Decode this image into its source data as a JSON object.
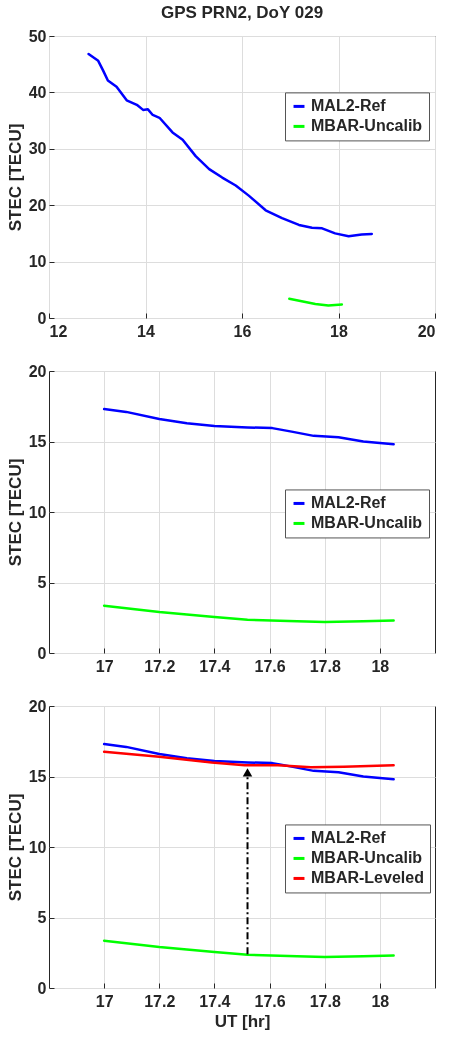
{
  "chart_data": [
    {
      "type": "line",
      "title": "GPS PRN2,  DoY 029",
      "ylabel": "STEC [TECU]",
      "xlim": [
        12,
        20
      ],
      "xticks": [
        12,
        14,
        16,
        18,
        20
      ],
      "ylim": [
        0,
        50
      ],
      "yticks": [
        0,
        10,
        20,
        30,
        40,
        50
      ],
      "grid": true,
      "legend": "top right",
      "series": [
        {
          "name": "MAL2-Ref",
          "color": "#0000ff",
          "x": [
            12.82,
            13.02,
            13.12,
            13.22,
            13.4,
            13.61,
            13.82,
            13.95,
            14.05,
            14.15,
            14.29,
            14.56,
            14.77,
            15.04,
            15.32,
            15.59,
            15.87,
            16.14,
            16.49,
            16.83,
            17.18,
            17.45,
            17.66,
            17.93,
            18.21,
            18.48,
            18.69
          ],
          "values": [
            46.8,
            45.6,
            43.9,
            42.1,
            41.0,
            38.6,
            37.8,
            36.9,
            37.0,
            36.0,
            35.5,
            32.9,
            31.6,
            28.7,
            26.4,
            24.9,
            23.5,
            21.7,
            19.1,
            17.7,
            16.5,
            16.0,
            15.9,
            15.0,
            14.5,
            14.8,
            14.9
          ]
        },
        {
          "name": "MBAR-Uncalib",
          "color": "#00ff00",
          "x": [
            16.98,
            17.52,
            17.79,
            18.07
          ],
          "values": [
            3.4,
            2.5,
            2.2,
            2.4
          ]
        }
      ]
    },
    {
      "type": "line",
      "ylabel": "STEC [TECU]",
      "xlim": [
        16.8,
        18.2
      ],
      "xticks": [
        17,
        17.2,
        17.4,
        17.6,
        17.8,
        18
      ],
      "ylim": [
        0,
        20
      ],
      "yticks": [
        0,
        5,
        10,
        15,
        20
      ],
      "grid": true,
      "legend": "right",
      "series": [
        {
          "name": "MAL2-Ref",
          "color": "#0000ff",
          "x": [
            17.0,
            17.08,
            17.2,
            17.3,
            17.4,
            17.52,
            17.61,
            17.68,
            17.76,
            17.85,
            17.94,
            18.05
          ],
          "values": [
            17.3,
            17.1,
            16.6,
            16.3,
            16.1,
            16.0,
            15.95,
            15.7,
            15.4,
            15.3,
            15.0,
            14.8
          ]
        },
        {
          "name": "MBAR-Uncalib",
          "color": "#00ff00",
          "x": [
            17.0,
            17.2,
            17.4,
            17.52,
            17.7,
            17.8,
            17.94,
            18.05
          ],
          "values": [
            3.35,
            2.9,
            2.55,
            2.35,
            2.25,
            2.2,
            2.25,
            2.3
          ]
        }
      ]
    },
    {
      "type": "line",
      "xlabel": "UT [hr]",
      "ylabel": "STEC [TECU]",
      "xlim": [
        16.8,
        18.2
      ],
      "xticks": [
        17,
        17.2,
        17.4,
        17.6,
        17.8,
        18
      ],
      "ylim": [
        0,
        20
      ],
      "yticks": [
        0,
        5,
        10,
        15,
        20
      ],
      "grid": true,
      "legend": "right",
      "series": [
        {
          "name": "MAL2-Ref",
          "color": "#0000ff",
          "x": [
            17.0,
            17.08,
            17.2,
            17.3,
            17.4,
            17.52,
            17.61,
            17.68,
            17.76,
            17.85,
            17.94,
            18.05
          ],
          "values": [
            17.3,
            17.1,
            16.6,
            16.3,
            16.1,
            16.0,
            15.95,
            15.7,
            15.4,
            15.3,
            15.0,
            14.8
          ]
        },
        {
          "name": "MBAR-Uncalib",
          "color": "#00ff00",
          "x": [
            17.0,
            17.2,
            17.4,
            17.52,
            17.7,
            17.8,
            17.94,
            18.05
          ],
          "values": [
            3.35,
            2.9,
            2.55,
            2.35,
            2.25,
            2.2,
            2.25,
            2.3
          ]
        },
        {
          "name": "MBAR-Leveled",
          "color": "#ff0000",
          "x": [
            17.0,
            17.2,
            17.39,
            17.51,
            17.63,
            17.75,
            17.87,
            18.05
          ],
          "values": [
            16.75,
            16.4,
            16.0,
            15.8,
            15.8,
            15.65,
            15.7,
            15.8
          ]
        }
      ]
    }
  ]
}
